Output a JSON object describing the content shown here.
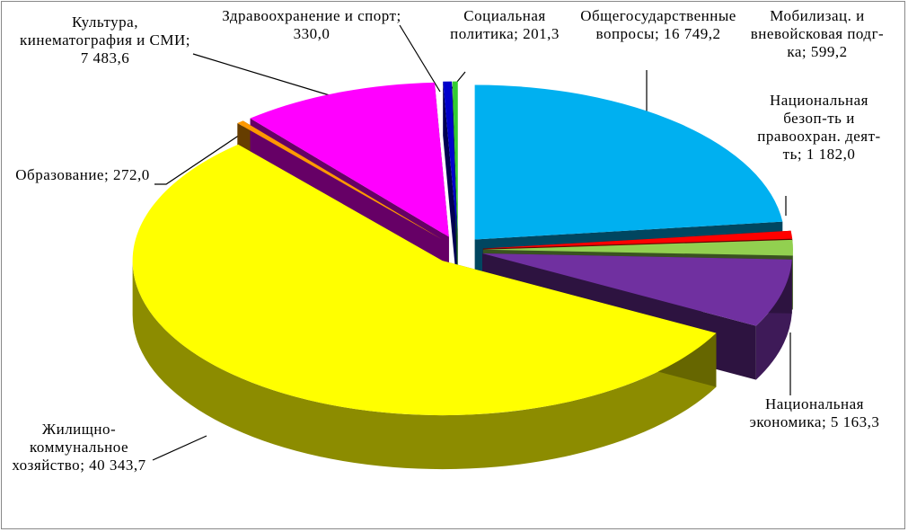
{
  "chart_data": {
    "type": "pie3d",
    "categories": [
      "Общегосударственные вопросы",
      "Мобилизац. и вневойсковая подг-ка",
      "Национальная безоп-ть и правоохран. деят-ть",
      "Национальная экономика",
      "Жилищно-коммунальное хозяйство",
      "Образование",
      "Культура, кинематография и СМИ",
      "Здравоохранение и спорт",
      "Социальная политика"
    ],
    "values": [
      16749.2,
      599.2,
      1182.0,
      5163.3,
      40343.7,
      272.0,
      7483.6,
      330.0,
      201.3
    ],
    "value_labels": [
      "16 749,2",
      "599,2",
      "1 182,0",
      "5 163,3",
      "40 343,7",
      "272,0",
      "7 483,6",
      "330,0",
      "201,3"
    ],
    "label_separator": ";",
    "colors": [
      "#00b0f0",
      "#ff0000",
      "#92d050",
      "#7030a0",
      "#ffff00",
      "#ff9900",
      "#ff00ff",
      "#0000cc",
      "#33cc33"
    ]
  }
}
